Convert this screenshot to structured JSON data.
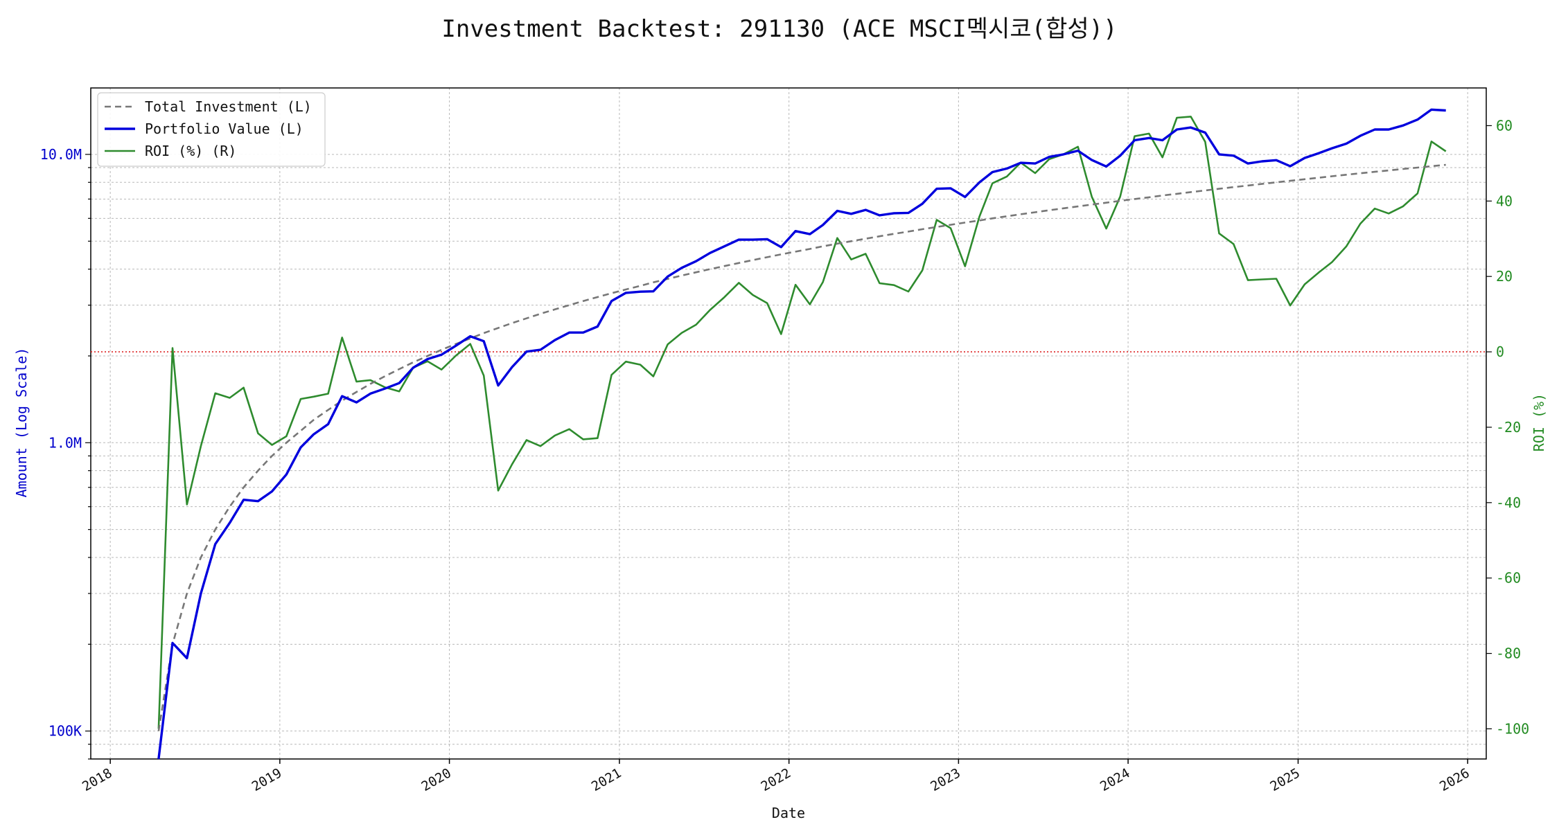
{
  "chart_data": {
    "type": "line",
    "title": "Investment Backtest: 291130 (ACE MSCI멕시코(합성))",
    "xlabel": "Date",
    "ylabel_left": "Amount (Log Scale)",
    "ylabel_right": "ROI (%)",
    "left_scale": "log",
    "left_ylim": [
      80000,
      17000000
    ],
    "right_ylim": [
      -108,
      70
    ],
    "xlim": [
      "2017-11-20",
      "2026-02-10"
    ],
    "grid": true,
    "legend_position": "top-left",
    "x_ticks": [
      "2018",
      "2019",
      "2020",
      "2021",
      "2022",
      "2023",
      "2024",
      "2025",
      "2026"
    ],
    "left_ticks": [
      {
        "value": 100000,
        "label": "100K"
      },
      {
        "value": 1000000,
        "label": "1.0M"
      },
      {
        "value": 10000000,
        "label": "10.0M"
      }
    ],
    "right_ticks": [
      -100,
      -80,
      -60,
      -40,
      -20,
      0,
      20,
      40,
      60
    ],
    "reference_line": {
      "axis": "right",
      "value": 0,
      "color": "#dd2222",
      "style": "dotted"
    },
    "colors": {
      "left_axis": "#0000cc",
      "right_axis": "#228b22",
      "total_investment": "#777777",
      "portfolio_value": "#0000dd",
      "roi": "#2e8b2e"
    },
    "series": [
      {
        "name": "Total Investment (L)",
        "axis": "left",
        "style": "dashed",
        "x": [
          "2018-04",
          "2018-05",
          "2018-06",
          "2018-07",
          "2018-08",
          "2018-09",
          "2018-10",
          "2018-11",
          "2018-12",
          "2019-01",
          "2019-02",
          "2019-03",
          "2019-04",
          "2019-05",
          "2019-06",
          "2019-07",
          "2019-08",
          "2019-09",
          "2019-10",
          "2019-11",
          "2019-12",
          "2020-01",
          "2020-02",
          "2020-03",
          "2020-04",
          "2020-05",
          "2020-06",
          "2020-07",
          "2020-08",
          "2020-09",
          "2020-10",
          "2020-11",
          "2020-12",
          "2021-01",
          "2021-02",
          "2021-03",
          "2021-04",
          "2021-05",
          "2021-06",
          "2021-07",
          "2021-08",
          "2021-09",
          "2021-10",
          "2021-11",
          "2021-12",
          "2022-01",
          "2022-02",
          "2022-03",
          "2022-04",
          "2022-05",
          "2022-06",
          "2022-07",
          "2022-08",
          "2022-09",
          "2022-10",
          "2022-11",
          "2022-12",
          "2023-01",
          "2023-02",
          "2023-03",
          "2023-04",
          "2023-05",
          "2023-06",
          "2023-07",
          "2023-08",
          "2023-09",
          "2023-10",
          "2023-11",
          "2023-12",
          "2024-01",
          "2024-02",
          "2024-03",
          "2024-04",
          "2024-05",
          "2024-06",
          "2024-07",
          "2024-08",
          "2024-09",
          "2024-10",
          "2024-11",
          "2024-12",
          "2025-01",
          "2025-02",
          "2025-03",
          "2025-04",
          "2025-05",
          "2025-06",
          "2025-07",
          "2025-08",
          "2025-09",
          "2025-10",
          "2025-11"
        ],
        "values": [
          100000,
          200000,
          300000,
          400000,
          500000,
          600000,
          700000,
          800000,
          900000,
          1000000,
          1100000,
          1200000,
          1300000,
          1400000,
          1500000,
          1600000,
          1700000,
          1800000,
          1900000,
          2000000,
          2100000,
          2200000,
          2300000,
          2400000,
          2500000,
          2600000,
          2700000,
          2800000,
          2900000,
          3000000,
          3100000,
          3200000,
          3300000,
          3400000,
          3500000,
          3600000,
          3700000,
          3800000,
          3900000,
          4000000,
          4100000,
          4200000,
          4300000,
          4400000,
          4500000,
          4600000,
          4700000,
          4800000,
          4900000,
          5000000,
          5100000,
          5200000,
          5300000,
          5400000,
          5500000,
          5600000,
          5700000,
          5800000,
          5900000,
          6000000,
          6100000,
          6200000,
          6300000,
          6400000,
          6500000,
          6600000,
          6700000,
          6800000,
          6900000,
          7000000,
          7100000,
          7200000,
          7300000,
          7400000,
          7500000,
          7600000,
          7700000,
          7800000,
          7900000,
          8000000,
          8100000,
          8200000,
          8300000,
          8400000,
          8500000,
          8600000,
          8700000,
          8800000,
          8900000,
          9000000,
          9100000,
          9200000
        ]
      },
      {
        "name": "Portfolio Value (L)",
        "axis": "left",
        "style": "solid",
        "x": [
          "2018-04",
          "2018-05",
          "2018-06",
          "2018-07",
          "2018-08",
          "2018-09",
          "2018-10",
          "2018-11",
          "2018-12",
          "2019-01",
          "2019-02",
          "2019-03",
          "2019-04",
          "2019-05",
          "2019-06",
          "2019-07",
          "2019-08",
          "2019-09",
          "2019-10",
          "2019-11",
          "2019-12",
          "2020-01",
          "2020-02",
          "2020-03",
          "2020-04",
          "2020-05",
          "2020-06",
          "2020-07",
          "2020-08",
          "2020-09",
          "2020-10",
          "2020-11",
          "2020-12",
          "2021-01",
          "2021-02",
          "2021-03",
          "2021-04",
          "2021-05",
          "2021-06",
          "2021-07",
          "2021-08",
          "2021-09",
          "2021-10",
          "2021-11",
          "2021-12",
          "2022-01",
          "2022-02",
          "2022-03",
          "2022-04",
          "2022-05",
          "2022-06",
          "2022-07",
          "2022-08",
          "2022-09",
          "2022-10",
          "2022-11",
          "2022-12",
          "2023-01",
          "2023-02",
          "2023-03",
          "2023-04",
          "2023-05",
          "2023-06",
          "2023-07",
          "2023-08",
          "2023-09",
          "2023-10",
          "2023-11",
          "2023-12",
          "2024-01",
          "2024-02",
          "2024-03",
          "2024-04",
          "2024-05",
          "2024-06",
          "2024-07",
          "2024-08",
          "2024-09",
          "2024-10",
          "2024-11",
          "2024-12",
          "2025-01",
          "2025-02",
          "2025-03",
          "2025-04",
          "2025-05",
          "2025-06",
          "2025-07",
          "2025-08",
          "2025-09",
          "2025-10",
          "2025-11"
        ],
        "values": [
          0,
          202000,
          179000,
          300000,
          445000,
          527000,
          634000,
          627000,
          678000,
          776000,
          963000,
          1070000,
          1160000,
          1450000,
          1380000,
          1480000,
          1540000,
          1610000,
          1820000,
          1950000,
          2020000,
          2170000,
          2340000,
          2250000,
          1580000,
          1830000,
          2070000,
          2100000,
          2270000,
          2410000,
          2410000,
          2530000,
          3100000,
          3310000,
          3340000,
          3350000,
          3770000,
          4040000,
          4260000,
          4550000,
          4800000,
          5060000,
          5060000,
          5080000,
          4770000,
          5420000,
          5290000,
          5690000,
          6370000,
          6220000,
          6420000,
          6150000,
          6250000,
          6270000,
          6740000,
          7600000,
          7630000,
          7120000,
          8000000,
          8680000,
          8930000,
          9350000,
          9300000,
          9800000,
          10000000,
          10300000,
          9560000,
          9080000,
          9900000,
          11200000,
          11400000,
          11200000,
          12200000,
          12400000,
          11900000,
          10000000,
          9900000,
          9300000,
          9460000,
          9550000,
          9100000,
          9720000,
          10100000,
          10500000,
          10900000,
          11600000,
          12200000,
          12200000,
          12600000,
          13200000,
          14300000,
          14200000
        ]
      },
      {
        "name": "ROI (%) (R)",
        "axis": "right",
        "style": "solid",
        "x": [
          "2018-04",
          "2018-05",
          "2018-06",
          "2018-07",
          "2018-08",
          "2018-09",
          "2018-10",
          "2018-11",
          "2018-12",
          "2019-01",
          "2019-02",
          "2019-03",
          "2019-04",
          "2019-05",
          "2019-06",
          "2019-07",
          "2019-08",
          "2019-09",
          "2019-10",
          "2019-11",
          "2019-12",
          "2020-01",
          "2020-02",
          "2020-03",
          "2020-04",
          "2020-05",
          "2020-06",
          "2020-07",
          "2020-08",
          "2020-09",
          "2020-10",
          "2020-11",
          "2020-12",
          "2021-01",
          "2021-02",
          "2021-03",
          "2021-04",
          "2021-05",
          "2021-06",
          "2021-07",
          "2021-08",
          "2021-09",
          "2021-10",
          "2021-11",
          "2021-12",
          "2022-01",
          "2022-02",
          "2022-03",
          "2022-04",
          "2022-05",
          "2022-06",
          "2022-07",
          "2022-08",
          "2022-09",
          "2022-10",
          "2022-11",
          "2022-12",
          "2023-01",
          "2023-02",
          "2023-03",
          "2023-04",
          "2023-05",
          "2023-06",
          "2023-07",
          "2023-08",
          "2023-09",
          "2023-10",
          "2023-11",
          "2023-12",
          "2024-01",
          "2024-02",
          "2024-03",
          "2024-04",
          "2024-05",
          "2024-06",
          "2024-07",
          "2024-08",
          "2024-09",
          "2024-10",
          "2024-11",
          "2024-12",
          "2025-01",
          "2025-02",
          "2025-03",
          "2025-04",
          "2025-05",
          "2025-06",
          "2025-07",
          "2025-08",
          "2025-09",
          "2025-10",
          "2025-11"
        ],
        "values": [
          -100,
          1,
          -40.5,
          -25,
          -11,
          -12.2,
          -9.5,
          -21.6,
          -24.7,
          -22.4,
          -12.5,
          -11.9,
          -11.1,
          3.8,
          -7.9,
          -7.5,
          -9.4,
          -10.5,
          -4.2,
          -2.5,
          -4.7,
          -1,
          2.1,
          -6.3,
          -36.8,
          -29.8,
          -23.4,
          -25,
          -22.2,
          -20.5,
          -23.2,
          -22.9,
          -6.1,
          -2.6,
          -3.4,
          -6.5,
          2,
          5,
          7.2,
          11.1,
          14.5,
          18.3,
          15.1,
          12.9,
          4.7,
          17.8,
          12.6,
          18.5,
          30.2,
          24.5,
          26,
          18.2,
          17.7,
          16,
          21.6,
          35,
          32.8,
          22.7,
          35.9,
          44.7,
          46.5,
          50.2,
          47.4,
          51.1,
          52.4,
          54.4,
          41.1,
          32.7,
          41.2,
          57.2,
          57.9,
          51.6,
          62.1,
          62.4,
          55.7,
          31.4,
          28.6,
          19,
          19.2,
          19.4,
          12.3,
          17.9,
          21.1,
          23.8,
          28,
          34,
          38,
          36.7,
          38.6,
          42,
          55.8,
          53.2
        ]
      }
    ]
  }
}
